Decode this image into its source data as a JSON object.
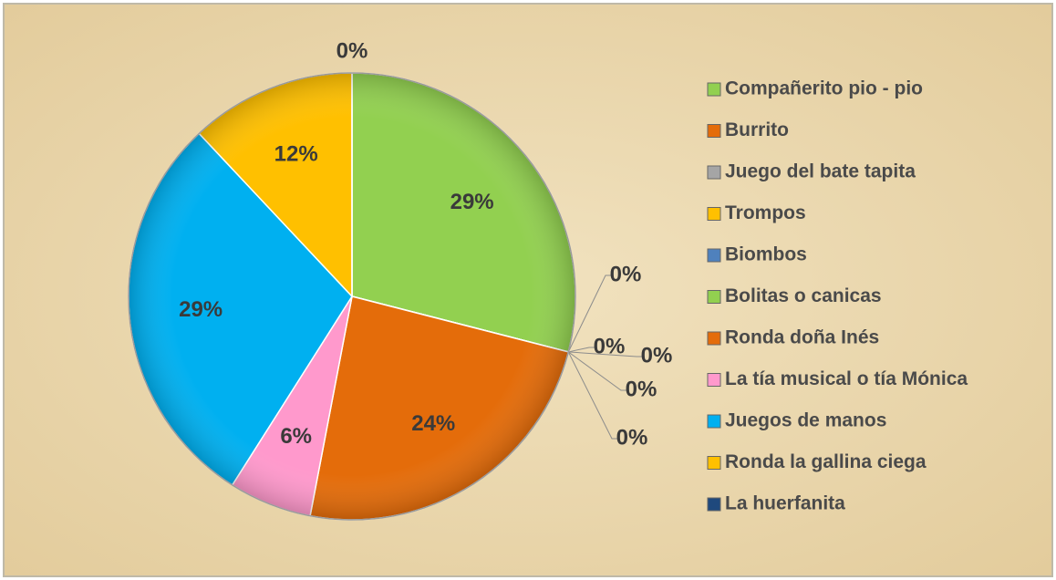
{
  "chart_data": {
    "type": "pie",
    "categories": [
      "Compañerito pio - pio",
      "Burrito",
      "Juego del bate tapita",
      "Trompos",
      "Biombos",
      "Bolitas o canicas",
      "Ronda doña Inés",
      "La tía musical o tía Mónica",
      "Juegos de manos",
      "Ronda la gallina ciega",
      "La huerfanita"
    ],
    "values": [
      29,
      0,
      0,
      0,
      0,
      0,
      24,
      6,
      29,
      12,
      0
    ],
    "value_labels": [
      "29%",
      "0%",
      "0%",
      "0%",
      "0%",
      "0%",
      "24%",
      "6%",
      "29%",
      "12%",
      "0%"
    ],
    "colors": [
      "#92d050",
      "#e46c0a",
      "#a5a5a5",
      "#ffc000",
      "#4f81bd",
      "#92d050",
      "#e46c0a",
      "#ff99cc",
      "#00b0f0",
      "#ffc000",
      "#1f497d"
    ],
    "legend": "right"
  }
}
